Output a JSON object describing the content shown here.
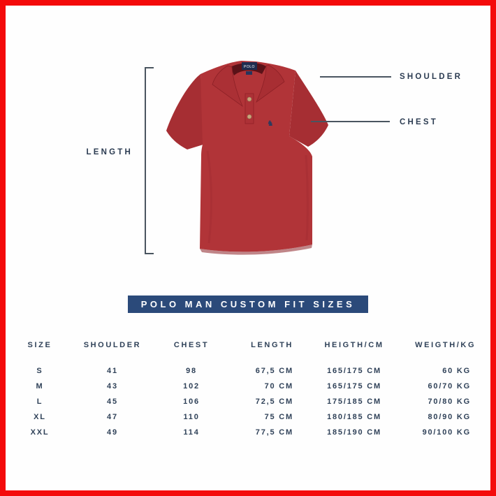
{
  "page": {
    "background": "#ffffff",
    "border_color": "#f40b0b"
  },
  "diagram": {
    "length_label": "LENGTH",
    "shoulder_label": "SHOULDER",
    "chest_label": "CHEST",
    "callout_text_color": "#2c3c52",
    "pointer_line_color": "#4a5560",
    "shirt": {
      "description": "red short-sleeve polo shirt",
      "neck_label_text": "POLO",
      "logo_glyph": "♞",
      "body_color": "#b13438",
      "sleeve_color": "#a62e33",
      "shade_color": "#8c2026",
      "neck_label_color": "#1f2d50",
      "button_color": "#caa67c",
      "logo_color": "#2b3a5e"
    }
  },
  "banner": {
    "title": "POLO MAN CUSTOM FIT SIZES",
    "background": "#2b4a7a",
    "text_color": "#ffffff"
  },
  "size_table": {
    "columns": [
      "SIZE",
      "SHOULDER",
      "CHEST",
      "LENGTH",
      "HEIGTH/CM",
      "WEIGTH/KG"
    ],
    "rows": [
      [
        "S",
        "41",
        "98",
        "67,5 CM",
        "165/175 CM",
        "60 KG"
      ],
      [
        "M",
        "43",
        "102",
        "70 CM",
        "165/175 CM",
        "60/70 KG"
      ],
      [
        "L",
        "45",
        "106",
        "72,5 CM",
        "175/185 CM",
        "70/80 KG"
      ],
      [
        "XL",
        "47",
        "110",
        "75 CM",
        "180/185 CM",
        "80/90 KG"
      ],
      [
        "XXL",
        "49",
        "114",
        "77,5 CM",
        "185/190 CM",
        "90/100 KG"
      ]
    ],
    "text_color": "#2f4158"
  }
}
